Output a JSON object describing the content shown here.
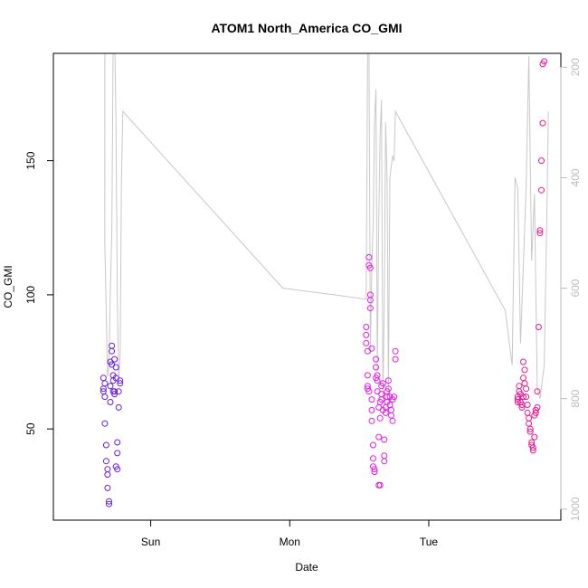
{
  "chart_data": {
    "type": "scatter",
    "title": "ATOM1 North_America CO_GMI",
    "xlabel": "Date",
    "ylabel": "CO_GMI",
    "x_unit": "days",
    "xlim": [
      -0.7,
      2.95
    ],
    "ylim": [
      16,
      190
    ],
    "x_ticks": [
      {
        "value": 0.0,
        "label": "Sun"
      },
      {
        "value": 1.0,
        "label": "Mon"
      },
      {
        "value": 2.0,
        "label": "Tue"
      }
    ],
    "y_ticks": [
      50,
      100,
      150
    ],
    "secondary_axis": {
      "side": "right",
      "label": "",
      "reversed": true,
      "lim": [
        1020,
        175
      ],
      "ticks": [
        200,
        400,
        600,
        800,
        1000
      ],
      "color": "#bdbdbd"
    },
    "pressure_line": {
      "color": "#c8c8c8",
      "points": [
        [
          -0.33,
          170
        ],
        [
          -0.33,
          520
        ],
        [
          -0.31,
          760
        ],
        [
          -0.3,
          740
        ],
        [
          -0.29,
          600
        ],
        [
          -0.28,
          500
        ],
        [
          -0.27,
          150
        ],
        [
          -0.26,
          120
        ],
        [
          -0.25,
          300
        ],
        [
          -0.24,
          620
        ],
        [
          -0.23,
          770
        ],
        [
          -0.22,
          720
        ],
        [
          -0.21,
          400
        ],
        [
          -0.2,
          280
        ],
        [
          0.95,
          600
        ],
        [
          1.55,
          620
        ],
        [
          1.56,
          170
        ],
        [
          1.57,
          170
        ],
        [
          1.58,
          720
        ],
        [
          1.59,
          560
        ],
        [
          1.6,
          480
        ],
        [
          1.61,
          300
        ],
        [
          1.62,
          240
        ],
        [
          1.63,
          750
        ],
        [
          1.64,
          480
        ],
        [
          1.65,
          320
        ],
        [
          1.66,
          260
        ],
        [
          1.67,
          800
        ],
        [
          1.68,
          620
        ],
        [
          1.69,
          300
        ],
        [
          1.7,
          400
        ],
        [
          1.71,
          790
        ],
        [
          1.72,
          400
        ],
        [
          1.73,
          380
        ],
        [
          1.74,
          360
        ],
        [
          1.75,
          370
        ],
        [
          1.76,
          280
        ],
        [
          2.55,
          640
        ],
        [
          2.6,
          740
        ],
        [
          2.62,
          400
        ],
        [
          2.64,
          420
        ],
        [
          2.66,
          700
        ],
        [
          2.68,
          560
        ],
        [
          2.7,
          420
        ],
        [
          2.72,
          180
        ],
        [
          2.74,
          550
        ],
        [
          2.76,
          430
        ],
        [
          2.78,
          780
        ],
        [
          2.8,
          800
        ],
        [
          2.83,
          740
        ],
        [
          2.85,
          460
        ],
        [
          2.86,
          280
        ]
      ]
    },
    "series": [
      {
        "color": "#6a1be8",
        "points": [
          [
            -0.34,
            69
          ],
          [
            -0.34,
            65
          ],
          [
            -0.34,
            64
          ],
          [
            -0.33,
            67
          ],
          [
            -0.33,
            62
          ],
          [
            -0.33,
            52
          ],
          [
            -0.32,
            44
          ],
          [
            -0.32,
            38
          ],
          [
            -0.31,
            35
          ],
          [
            -0.31,
            33
          ],
          [
            -0.31,
            28
          ],
          [
            -0.3,
            23
          ],
          [
            -0.3,
            22
          ],
          [
            -0.29,
            66
          ],
          [
            -0.29,
            60
          ],
          [
            -0.29,
            75
          ],
          [
            -0.28,
            81
          ],
          [
            -0.28,
            79
          ],
          [
            -0.28,
            74
          ],
          [
            -0.27,
            70
          ],
          [
            -0.27,
            68
          ],
          [
            -0.27,
            64
          ],
          [
            -0.26,
            64
          ],
          [
            -0.26,
            63
          ],
          [
            -0.26,
            76
          ],
          [
            -0.25,
            73
          ],
          [
            -0.25,
            69
          ],
          [
            -0.25,
            36
          ],
          [
            -0.24,
            35
          ],
          [
            -0.24,
            41
          ],
          [
            -0.24,
            45
          ],
          [
            -0.23,
            58
          ],
          [
            -0.23,
            64
          ],
          [
            -0.22,
            67
          ],
          [
            -0.22,
            68
          ]
        ]
      },
      {
        "color": "#e61be6",
        "points": [
          [
            1.55,
            88
          ],
          [
            1.55,
            85
          ],
          [
            1.55,
            82
          ],
          [
            1.56,
            79
          ],
          [
            1.56,
            70
          ],
          [
            1.56,
            66
          ],
          [
            1.56,
            65
          ],
          [
            1.57,
            64
          ],
          [
            1.57,
            114
          ],
          [
            1.57,
            111
          ],
          [
            1.58,
            110
          ],
          [
            1.58,
            100
          ],
          [
            1.58,
            98
          ],
          [
            1.58,
            95
          ],
          [
            1.59,
            80
          ],
          [
            1.59,
            61
          ],
          [
            1.59,
            57
          ],
          [
            1.59,
            53
          ],
          [
            1.6,
            44
          ],
          [
            1.6,
            39
          ],
          [
            1.6,
            36
          ],
          [
            1.61,
            35
          ],
          [
            1.61,
            34
          ],
          [
            1.62,
            76
          ],
          [
            1.62,
            73
          ],
          [
            1.62,
            69
          ],
          [
            1.63,
            70
          ],
          [
            1.63,
            68
          ],
          [
            1.63,
            64
          ],
          [
            1.64,
            58
          ],
          [
            1.64,
            47
          ],
          [
            1.64,
            29
          ],
          [
            1.65,
            29
          ],
          [
            1.65,
            54
          ],
          [
            1.65,
            60
          ],
          [
            1.66,
            61
          ],
          [
            1.66,
            63
          ],
          [
            1.66,
            66
          ],
          [
            1.67,
            67
          ],
          [
            1.67,
            57
          ],
          [
            1.68,
            46
          ],
          [
            1.68,
            40
          ],
          [
            1.68,
            38
          ],
          [
            1.69,
            56
          ],
          [
            1.69,
            58
          ],
          [
            1.7,
            60
          ],
          [
            1.7,
            62
          ],
          [
            1.7,
            64
          ],
          [
            1.71,
            68
          ],
          [
            1.71,
            65
          ],
          [
            1.72,
            62
          ],
          [
            1.72,
            59
          ],
          [
            1.73,
            57
          ],
          [
            1.73,
            55
          ],
          [
            1.74,
            53
          ],
          [
            1.74,
            61
          ],
          [
            1.75,
            62
          ],
          [
            1.76,
            79
          ],
          [
            1.76,
            76
          ]
        ]
      },
      {
        "color": "#f0178e",
        "points": [
          [
            2.64,
            62
          ],
          [
            2.64,
            61
          ],
          [
            2.64,
            60
          ],
          [
            2.65,
            64
          ],
          [
            2.65,
            66
          ],
          [
            2.66,
            63
          ],
          [
            2.66,
            60
          ],
          [
            2.67,
            58
          ],
          [
            2.67,
            59
          ],
          [
            2.68,
            62
          ],
          [
            2.68,
            69
          ],
          [
            2.68,
            75
          ],
          [
            2.69,
            72
          ],
          [
            2.69,
            67
          ],
          [
            2.7,
            65
          ],
          [
            2.7,
            62
          ],
          [
            2.71,
            59
          ],
          [
            2.71,
            56
          ],
          [
            2.72,
            54
          ],
          [
            2.72,
            52
          ],
          [
            2.73,
            50
          ],
          [
            2.73,
            49
          ],
          [
            2.74,
            45
          ],
          [
            2.74,
            44
          ],
          [
            2.75,
            42
          ],
          [
            2.75,
            43
          ],
          [
            2.76,
            47
          ],
          [
            2.76,
            55
          ],
          [
            2.77,
            56
          ],
          [
            2.77,
            57
          ],
          [
            2.78,
            58
          ],
          [
            2.78,
            64
          ],
          [
            2.79,
            88
          ],
          [
            2.8,
            123
          ],
          [
            2.8,
            124
          ],
          [
            2.81,
            139
          ],
          [
            2.81,
            150
          ],
          [
            2.82,
            164
          ],
          [
            2.82,
            186
          ],
          [
            2.83,
            187
          ]
        ]
      }
    ]
  }
}
